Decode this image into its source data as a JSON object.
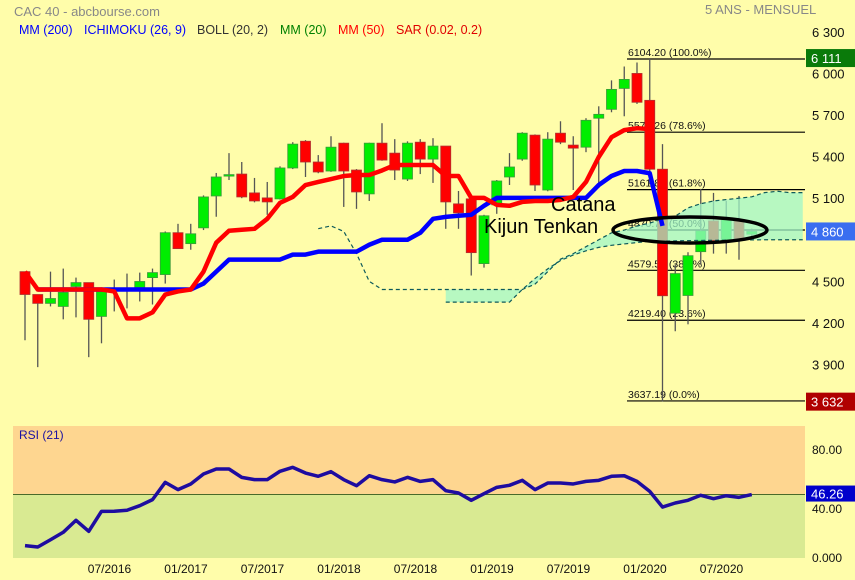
{
  "header": {
    "title": "CAC 40 - abcbourse.com",
    "period": "5 ANS - MENSUEL"
  },
  "legend": [
    {
      "label": "MM (200)",
      "color": "#0000ff"
    },
    {
      "label": "ICHIMOKU (26, 9)",
      "color": "#0000ff"
    },
    {
      "label": "BOLL (20, 2)",
      "color": "#333333"
    },
    {
      "label": "MM (20)",
      "color": "#008000"
    },
    {
      "label": "MM (50)",
      "color": "#ff0000"
    },
    {
      "label": "SAR (0.02, 0.2)",
      "color": "#e00000"
    }
  ],
  "annotations": {
    "line1": "Catana",
    "line2": "Kijun Tenkan"
  },
  "colors": {
    "background": "#fffdaa",
    "up": "#00ee00",
    "down": "#ff0000",
    "wick": "#555555",
    "cloud": "#9ff5c8",
    "rsi_line": "#1e0ca0",
    "rsi_upper_zone": "#fed690",
    "rsi_lower_zone": "#d9ea92"
  },
  "chart_data": [
    {
      "type": "candlestick",
      "dates": [
        "01/2016",
        "02/2016",
        "03/2016",
        "04/2016",
        "05/2016",
        "06/2016",
        "07/2016",
        "08/2016",
        "09/2016",
        "10/2016",
        "11/2016",
        "12/2016",
        "01/2017",
        "02/2017",
        "03/2017",
        "04/2017",
        "05/2017",
        "06/2017",
        "07/2017",
        "08/2017",
        "09/2017",
        "10/2017",
        "11/2017",
        "12/2017",
        "01/2018",
        "02/2018",
        "03/2018",
        "04/2018",
        "05/2018",
        "06/2018",
        "07/2018",
        "08/2018",
        "09/2018",
        "10/2018",
        "11/2018",
        "12/2018",
        "01/2019",
        "02/2019",
        "03/2019",
        "04/2019",
        "05/2019",
        "06/2019",
        "07/2019",
        "08/2019",
        "09/2019",
        "10/2019",
        "11/2019",
        "12/2019",
        "01/2020",
        "02/2020",
        "03/2020",
        "04/2020",
        "05/2020",
        "06/2020",
        "07/2020",
        "08/2020",
        "09/2020",
        "10/2020"
      ],
      "ohlc": [
        [
          4570,
          4570,
          4075,
          4405
        ],
        [
          4405,
          4405,
          3881,
          4341
        ],
        [
          4341,
          4570,
          4319,
          4376
        ],
        [
          4319,
          4592,
          4226,
          4420
        ],
        [
          4463,
          4527,
          4240,
          4491
        ],
        [
          4491,
          4491,
          3953,
          4226
        ],
        [
          4247,
          4456,
          4053,
          4427
        ],
        [
          4448,
          4513,
          4283,
          4441
        ],
        [
          4441,
          4556,
          4305,
          4448
        ],
        [
          4456,
          4563,
          4355,
          4499
        ],
        [
          4527,
          4592,
          4333,
          4563
        ],
        [
          4549,
          4860,
          4484,
          4851
        ],
        [
          4851,
          4915,
          4736,
          4736
        ],
        [
          4772,
          4915,
          4728,
          4843
        ],
        [
          4886,
          5120,
          4870,
          5109
        ],
        [
          5116,
          5282,
          4966,
          5253
        ],
        [
          5267,
          5425,
          5231,
          5270
        ],
        [
          5274,
          5361,
          5100,
          5109
        ],
        [
          5138,
          5246,
          5070,
          5080
        ],
        [
          5102,
          5217,
          4980,
          5073
        ],
        [
          5095,
          5330,
          5090,
          5318
        ],
        [
          5318,
          5504,
          5310,
          5490
        ],
        [
          5511,
          5519,
          5253,
          5361
        ],
        [
          5361,
          5411,
          5280,
          5289
        ],
        [
          5296,
          5547,
          5290,
          5468
        ],
        [
          5497,
          5500,
          5037,
          5296
        ],
        [
          5303,
          5310,
          5023,
          5145
        ],
        [
          5131,
          5500,
          5080,
          5497
        ],
        [
          5497,
          5641,
          5370,
          5375
        ],
        [
          5425,
          5526,
          5231,
          5303
        ],
        [
          5238,
          5510,
          5224,
          5497
        ],
        [
          5504,
          5526,
          5274,
          5382
        ],
        [
          5382,
          5533,
          5210,
          5476
        ],
        [
          5476,
          5476,
          4879,
          5073
        ],
        [
          5059,
          5152,
          4879,
          4994
        ],
        [
          5095,
          5095,
          4542,
          4707
        ],
        [
          4628,
          4980,
          4599,
          4973
        ],
        [
          5052,
          5231,
          4987,
          5224
        ],
        [
          5253,
          5425,
          5195,
          5325
        ],
        [
          5382,
          5576,
          5370,
          5569
        ],
        [
          5555,
          5560,
          5152,
          5195
        ],
        [
          5159,
          5576,
          5150,
          5526
        ],
        [
          5569,
          5655,
          5490,
          5504
        ],
        [
          5483,
          5547,
          5159,
          5461
        ],
        [
          5468,
          5677,
          5432,
          5662
        ],
        [
          5677,
          5763,
          5174,
          5705
        ],
        [
          5741,
          5950,
          5720,
          5885
        ],
        [
          5892,
          6050,
          5691,
          5957
        ],
        [
          6000,
          6079,
          5780,
          5792
        ],
        [
          5806,
          6111,
          5200,
          5309
        ],
        [
          5309,
          5490,
          3632,
          4396
        ],
        [
          4270,
          4620,
          4140,
          4556
        ],
        [
          4398,
          4710,
          4190,
          4685
        ],
        [
          4714,
          5167,
          4620,
          4865
        ],
        [
          4936,
          5138,
          4700,
          4784
        ],
        [
          4784,
          5080,
          4700,
          4947
        ],
        [
          4947,
          5116,
          4656,
          4803
        ],
        [
          4840,
          4880,
          4820,
          4860
        ]
      ],
      "red_line": [
        4570,
        4441,
        4441,
        4441,
        4441,
        4441,
        4441,
        4427,
        4233,
        4233,
        4276,
        4405,
        4427,
        4441,
        4570,
        4779,
        4865,
        4872,
        4879,
        4951,
        5066,
        5109,
        5195,
        5217,
        5238,
        5260,
        5267,
        5267,
        5300,
        5339,
        5339,
        5339,
        5339,
        5260,
        5260,
        5102,
        5102,
        5052,
        5045,
        5073,
        5080,
        5080,
        5088,
        5109,
        5217,
        5397,
        5540,
        5591,
        5605,
        5598
      ],
      "blue_line": [
        null,
        4441,
        4441,
        4441,
        4441,
        4441,
        4441,
        4441,
        4441,
        4441,
        4441,
        4441,
        4441,
        4441,
        4484,
        4570,
        4657,
        4657,
        4657,
        4657,
        4657,
        4693,
        4693,
        4714,
        4714,
        4714,
        4714,
        4764,
        4800,
        4800,
        4800,
        4850,
        4951,
        4965,
        4973,
        4980,
        5045,
        5102,
        5102,
        5102,
        5102,
        5102,
        5102,
        5102,
        5102,
        5195,
        5260,
        5296,
        5296,
        5280,
        4900
      ],
      "cloud_span_a": [
        null,
        null,
        null,
        null,
        null,
        null,
        null,
        null,
        null,
        null,
        null,
        null,
        null,
        null,
        null,
        null,
        null,
        null,
        null,
        null,
        null,
        null,
        null,
        4880,
        4900,
        4860,
        4700,
        4500,
        4441,
        4441,
        4441,
        4441,
        4441,
        4441,
        4441,
        4441,
        4441,
        4441,
        4441,
        4441,
        4480,
        4570,
        4660,
        4700,
        4750,
        4800,
        4850,
        4870,
        4900,
        4920,
        4950,
        4970,
        5030,
        5060,
        5080,
        5090,
        5100,
        5110,
        5140,
        5150,
        5140,
        5140
      ],
      "cloud_span_b": [
        null,
        null,
        null,
        null,
        null,
        null,
        null,
        null,
        null,
        null,
        null,
        null,
        null,
        null,
        null,
        null,
        null,
        null,
        null,
        null,
        null,
        null,
        null,
        null,
        null,
        null,
        null,
        null,
        null,
        null,
        null,
        null,
        null,
        4350,
        4350,
        4350,
        4350,
        4350,
        4350,
        4441,
        4520,
        4590,
        4650,
        4690,
        4720,
        4745,
        4760,
        4770,
        4780,
        4790,
        4790,
        4792,
        4794,
        4795,
        4796,
        4797,
        4798,
        4799,
        4800,
        4800,
        4800,
        4800
      ],
      "fibonacci": [
        {
          "value": 6104.2,
          "label": "6104.20  (100.0%)"
        },
        {
          "value": 5576.26,
          "label": "5576.26  (78.6%)"
        },
        {
          "value": 5161.8,
          "label": "5161.80  (61.8%)"
        },
        {
          "value": 4870.7,
          "label": "4870.70  (50.0%)"
        },
        {
          "value": 4579.59,
          "label": "4579.59  (38.2%)"
        },
        {
          "value": 4219.4,
          "label": "4219.40  (23.6%)"
        },
        {
          "value": 3637.19,
          "label": "3637.19  (0.0%)"
        }
      ],
      "y_ticks": [
        {
          "value": 6300,
          "label": "6 300"
        },
        {
          "value": 6000,
          "label": "6 000"
        },
        {
          "value": 5700,
          "label": "5 700"
        },
        {
          "value": 5400,
          "label": "5 400"
        },
        {
          "value": 5100,
          "label": "5 100"
        },
        {
          "value": 4500,
          "label": "4 500"
        },
        {
          "value": 4200,
          "label": "4 200"
        },
        {
          "value": 3900,
          "label": "3 900"
        }
      ],
      "price_badges": [
        {
          "value": 6111,
          "label": "6 111",
          "color": "#0a7a0a"
        },
        {
          "value": 4860,
          "label": "4 860",
          "color": "#3a6ef0"
        },
        {
          "value": 3632,
          "label": "3 632",
          "color": "#b00000"
        }
      ]
    },
    {
      "type": "line",
      "title": "RSI (21)",
      "values": [
        8.4,
        7.4,
        12.8,
        18.3,
        27.2,
        19.0,
        33.8,
        33.9,
        34.6,
        38.0,
        42.5,
        55.3,
        49.9,
        54.1,
        61.5,
        65.2,
        65.2,
        59.0,
        57.3,
        57.3,
        63.5,
        66.4,
        62.2,
        59.8,
        63.2,
        57.3,
        52.8,
        60.2,
        57.3,
        55.6,
        59.0,
        56.0,
        57.3,
        49.1,
        47.4,
        42.0,
        46.9,
        51.6,
        53.1,
        56.8,
        49.9,
        54.8,
        54.8,
        54.1,
        56.0,
        56.8,
        59.8,
        60.2,
        56.0,
        48.6,
        37.0,
        40.0,
        42.0,
        45.7,
        43.2,
        45.4,
        44.2,
        46.26
      ],
      "y_ticks": [
        {
          "value": 80,
          "label": "80.00"
        },
        {
          "value": 40,
          "label": "40.00"
        },
        {
          "value": 0,
          "label": "0.000"
        }
      ],
      "current": {
        "value": 46.26,
        "label": "46.26",
        "color": "#0000cc"
      },
      "x_ticks": [
        "07/2016",
        "01/2017",
        "07/2017",
        "01/2018",
        "07/2018",
        "01/2019",
        "07/2019",
        "01/2020",
        "07/2020"
      ]
    }
  ]
}
